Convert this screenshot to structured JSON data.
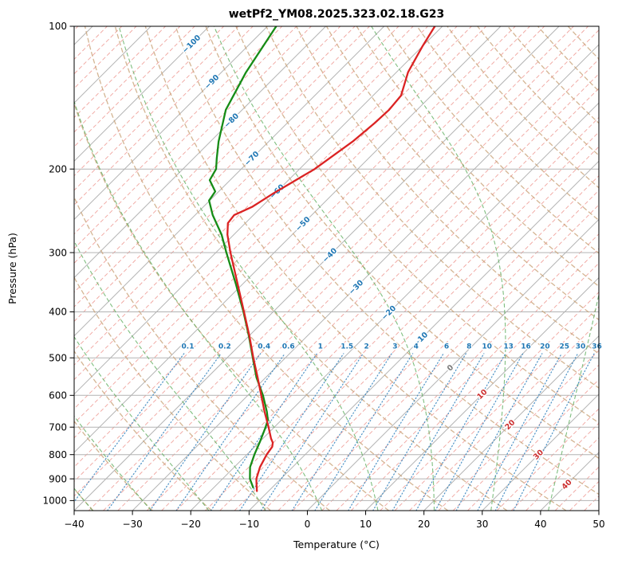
{
  "title": "wetPf2_YM08.2025.323.02.18.G23",
  "axes": {
    "x_label": "Temperature (°C)",
    "y_label": "Pressure (hPa)",
    "x_ticks": [
      -40,
      -30,
      -20,
      -10,
      0,
      10,
      20,
      30,
      40,
      50
    ],
    "y_ticks": [
      100,
      200,
      300,
      400,
      500,
      600,
      700,
      800,
      900,
      1000
    ]
  },
  "chart_data": {
    "type": "skewt_log_p",
    "x_range_c": [
      -40,
      50
    ],
    "pressure_range_hpa": [
      1050,
      100
    ],
    "skew_deg": 45,
    "grid": true,
    "isotherms": {
      "major_step_c": 10,
      "minor_step_c": 2.5,
      "labels": [
        [
          -100,
          109
        ],
        [
          -90,
          131
        ],
        [
          -80,
          158
        ],
        [
          -70,
          190
        ],
        [
          -60,
          223
        ],
        [
          -50,
          261
        ],
        [
          -40,
          304
        ],
        [
          -30,
          355
        ],
        [
          -20,
          402
        ],
        [
          -10,
          457
        ],
        [
          0,
          525
        ],
        [
          10,
          597
        ],
        [
          20,
          692
        ],
        [
          30,
          800
        ],
        [
          40,
          925
        ]
      ]
    },
    "dry_adiabats_c": [
      -40,
      -30,
      -20,
      -10,
      0,
      10,
      20,
      30,
      40,
      50,
      60,
      70,
      80,
      90,
      100,
      110,
      120,
      130,
      140,
      150,
      160,
      170,
      180
    ],
    "moist_adiabats_c": [
      -60,
      -50,
      -40,
      -30,
      -20,
      -10,
      0,
      10,
      20,
      30,
      40,
      50
    ],
    "mixing_ratio_g_kg": [
      0.1,
      0.2,
      0.4,
      0.6,
      1,
      1.5,
      2,
      3,
      4,
      6,
      8,
      10,
      13,
      16,
      20,
      25,
      30,
      36
    ],
    "mixing_label_pressure_hpa": 478,
    "mixing_lines_top_hpa": 490,
    "temperature_profile_p_t": [
      [
        955,
        -12.0
      ],
      [
        925,
        -13.2
      ],
      [
        900,
        -14.2
      ],
      [
        850,
        -15.6
      ],
      [
        800,
        -16.6
      ],
      [
        770,
        -17.0
      ],
      [
        755,
        -17.6
      ],
      [
        740,
        -18.6
      ],
      [
        700,
        -21.0
      ],
      [
        650,
        -24.3
      ],
      [
        600,
        -27.7
      ],
      [
        550,
        -31.4
      ],
      [
        500,
        -35.5
      ],
      [
        450,
        -39.9
      ],
      [
        400,
        -45.0
      ],
      [
        350,
        -50.8
      ],
      [
        300,
        -57.5
      ],
      [
        275,
        -61.1
      ],
      [
        260,
        -63.0
      ],
      [
        250,
        -63.3
      ],
      [
        240,
        -61.6
      ],
      [
        225,
        -60.3
      ],
      [
        200,
        -57.4
      ],
      [
        175,
        -55.6
      ],
      [
        160,
        -55.0
      ],
      [
        150,
        -54.8
      ],
      [
        140,
        -55.2
      ],
      [
        125,
        -58.0
      ],
      [
        110,
        -60.0
      ],
      [
        100,
        -61.3
      ]
    ],
    "dewpoint_profile_p_t": [
      [
        938,
        -13.3
      ],
      [
        900,
        -15.3
      ],
      [
        850,
        -17.3
      ],
      [
        800,
        -18.7
      ],
      [
        750,
        -20.0
      ],
      [
        700,
        -21.5
      ],
      [
        675,
        -22.4
      ],
      [
        650,
        -23.9
      ],
      [
        600,
        -27.4
      ],
      [
        550,
        -31.6
      ],
      [
        500,
        -35.6
      ],
      [
        450,
        -40.0
      ],
      [
        400,
        -45.1
      ],
      [
        350,
        -51.1
      ],
      [
        300,
        -58.2
      ],
      [
        275,
        -62.1
      ],
      [
        250,
        -67.0
      ],
      [
        233,
        -70.1
      ],
      [
        223,
        -70.6
      ],
      [
        211,
        -73.5
      ],
      [
        200,
        -74.3
      ],
      [
        190,
        -76.0
      ],
      [
        175,
        -78.6
      ],
      [
        150,
        -82.8
      ],
      [
        125,
        -85.8
      ],
      [
        100,
        -88.5
      ]
    ],
    "colors": {
      "temperature_line": "#db2323",
      "dewpoint_line": "#168c16",
      "isotherm_major": "#b3b3b3",
      "isotherm_minor": "#f0a49e",
      "pressure_grid": "#b3b3b3",
      "dry_adiabat": "#c9a378",
      "moist_adiabat": "#5fae5f",
      "mixing_ratio": "#3c87c0",
      "label_negative": "#1f77b4",
      "label_positive": "#cc3030",
      "label_zero": "#7a7a7a",
      "mixing_label": "#1f77b4",
      "frame": "#000000"
    }
  }
}
